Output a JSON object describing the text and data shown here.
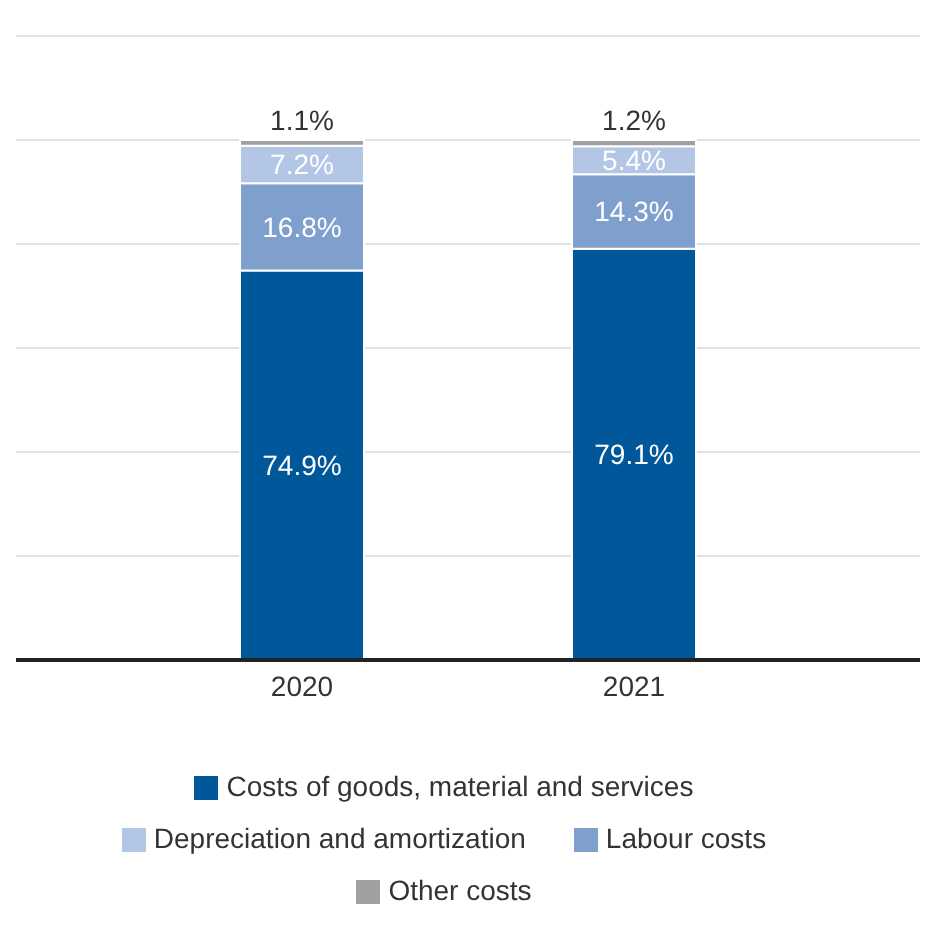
{
  "chart_data": {
    "type": "bar",
    "stacked": true,
    "categories": [
      "2020",
      "2021"
    ],
    "series": [
      {
        "name": "Costs of goods, material and services",
        "color": "#00589a",
        "values": [
          74.9,
          79.1
        ],
        "value_labels": [
          "74.9%",
          "79.1%"
        ]
      },
      {
        "name": "Labour costs",
        "color": "#7f9fcc",
        "values": [
          16.8,
          14.3
        ],
        "value_labels": [
          "16.8%",
          "14.3%"
        ]
      },
      {
        "name": "Depreciation and amortization",
        "color": "#b3c6e5",
        "values": [
          7.2,
          5.4
        ],
        "value_labels": [
          "7.2%",
          "5.4%"
        ]
      },
      {
        "name": "Other costs",
        "color": "#a0a0a0",
        "values": [
          1.1,
          1.2
        ],
        "value_labels": [
          "1.1%",
          "1.2%"
        ]
      }
    ],
    "ylim": [
      0,
      120
    ],
    "grid": "y",
    "legend": "bottom",
    "tick_labels": "x"
  }
}
